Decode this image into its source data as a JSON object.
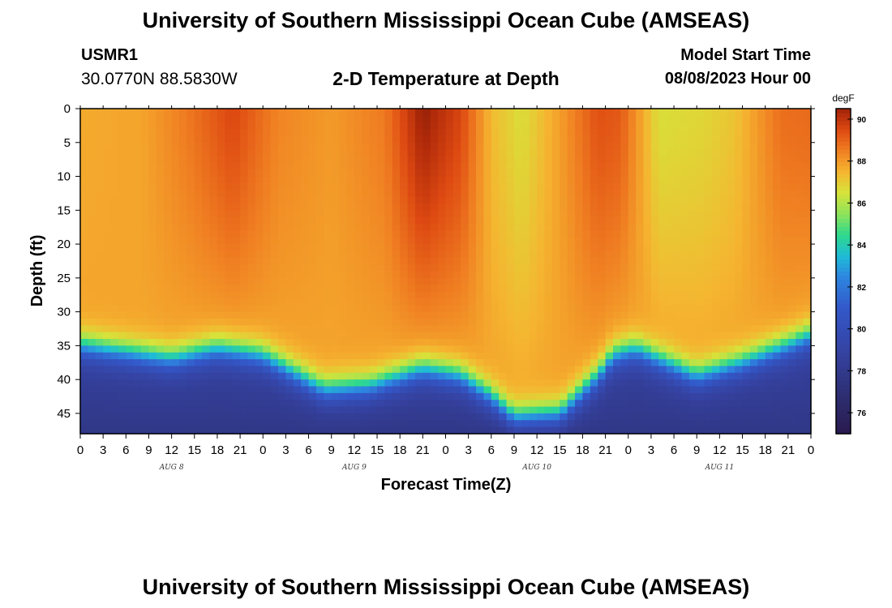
{
  "header": {
    "title": "University of Southern Mississippi Ocean Cube (AMSEAS)",
    "station_id": "USMR1",
    "coordinates": "30.0770N  88.5830W",
    "plot_title": "2-D Temperature at Depth",
    "model_start_label": "Model Start Time",
    "model_start_value": "08/08/2023 Hour 00"
  },
  "footer": {
    "title": "University of Southern Mississippi Ocean Cube (AMSEAS)"
  },
  "chart_data": {
    "type": "heatmap",
    "title": "2-D Temperature at Depth",
    "xlabel": "Forecast Time(Z)",
    "ylabel": "Depth (ft)",
    "x_unit": "hours from model start",
    "xlim": [
      0,
      96
    ],
    "ylim": [
      0,
      48
    ],
    "y_inverted": true,
    "x_ticks": [
      0,
      3,
      6,
      9,
      12,
      15,
      18,
      21,
      24,
      27,
      30,
      33,
      36,
      39,
      42,
      45,
      48,
      51,
      54,
      57,
      60,
      63,
      66,
      69,
      72,
      75,
      78,
      81,
      84,
      87,
      90,
      93,
      96
    ],
    "x_tick_labels": [
      "0",
      "3",
      "6",
      "9",
      "12",
      "15",
      "18",
      "21",
      "0",
      "3",
      "6",
      "9",
      "12",
      "15",
      "18",
      "21",
      "0",
      "3",
      "6",
      "9",
      "12",
      "15",
      "18",
      "21",
      "0",
      "3",
      "6",
      "9",
      "12",
      "15",
      "18",
      "21",
      "0"
    ],
    "y_ticks": [
      0,
      5,
      10,
      15,
      20,
      25,
      30,
      35,
      40,
      45
    ],
    "y_tick_labels": [
      "0",
      "5",
      "10",
      "15",
      "20",
      "25",
      "30",
      "35",
      "40",
      "45"
    ],
    "day_labels": [
      {
        "text": "AUG 8",
        "hour": 12
      },
      {
        "text": "AUG 9",
        "hour": 36
      },
      {
        "text": "AUG 10",
        "hour": 60
      },
      {
        "text": "AUG 11",
        "hour": 84
      }
    ],
    "colorbar": {
      "unit": "degF",
      "min": 75,
      "max": 90.5,
      "ticks": [
        76,
        78,
        80,
        82,
        84,
        86,
        88,
        90
      ],
      "tick_labels": [
        "76",
        "78",
        "80",
        "82",
        "84",
        "86",
        "88",
        "90"
      ],
      "colors": [
        {
          "t": 75.0,
          "c": "#2a1a4e"
        },
        {
          "t": 77.0,
          "c": "#2e3075"
        },
        {
          "t": 79.0,
          "c": "#3543a3"
        },
        {
          "t": 81.0,
          "c": "#3358c9"
        },
        {
          "t": 82.5,
          "c": "#2d86e0"
        },
        {
          "t": 83.5,
          "c": "#1fbcd6"
        },
        {
          "t": 84.5,
          "c": "#2fd98c"
        },
        {
          "t": 85.5,
          "c": "#8fe35a"
        },
        {
          "t": 86.5,
          "c": "#d6e33a"
        },
        {
          "t": 87.5,
          "c": "#f5b530"
        },
        {
          "t": 88.5,
          "c": "#f07f22"
        },
        {
          "t": 89.5,
          "c": "#de4a12"
        },
        {
          "t": 90.3,
          "c": "#b02a0a"
        },
        {
          "t": 91.0,
          "c": "#6a1406"
        }
      ]
    },
    "thermocline_depth_ft": [
      {
        "hour": 0,
        "depth": 33.5
      },
      {
        "hour": 12,
        "depth": 35.5
      },
      {
        "hour": 18,
        "depth": 34
      },
      {
        "hour": 24,
        "depth": 35
      },
      {
        "hour": 28,
        "depth": 37.5
      },
      {
        "hour": 32,
        "depth": 40
      },
      {
        "hour": 38,
        "depth": 39.5
      },
      {
        "hour": 45,
        "depth": 37
      },
      {
        "hour": 50,
        "depth": 38
      },
      {
        "hour": 54,
        "depth": 41
      },
      {
        "hour": 57,
        "depth": 44
      },
      {
        "hour": 63,
        "depth": 43.5
      },
      {
        "hour": 68,
        "depth": 38
      },
      {
        "hour": 70,
        "depth": 35
      },
      {
        "hour": 73,
        "depth": 34
      },
      {
        "hour": 78,
        "depth": 36.5
      },
      {
        "hour": 81,
        "depth": 38
      },
      {
        "hour": 87,
        "depth": 36
      },
      {
        "hour": 93,
        "depth": 33.5
      },
      {
        "hour": 96,
        "depth": 32
      }
    ],
    "surface_temperature_degF": [
      {
        "hour": 0,
        "temp": 87.7
      },
      {
        "hour": 8,
        "temp": 87.8
      },
      {
        "hour": 14,
        "temp": 88.6
      },
      {
        "hour": 20,
        "temp": 89.6
      },
      {
        "hour": 26,
        "temp": 88.4
      },
      {
        "hour": 33,
        "temp": 88.0
      },
      {
        "hour": 40,
        "temp": 88.6
      },
      {
        "hour": 45,
        "temp": 90.6
      },
      {
        "hour": 50,
        "temp": 89.6
      },
      {
        "hour": 54,
        "temp": 87.4
      },
      {
        "hour": 58,
        "temp": 86.6
      },
      {
        "hour": 64,
        "temp": 88.2
      },
      {
        "hour": 68,
        "temp": 89.4
      },
      {
        "hour": 71,
        "temp": 89.2
      },
      {
        "hour": 76,
        "temp": 86.6
      },
      {
        "hour": 82,
        "temp": 86.8
      },
      {
        "hour": 86,
        "temp": 87.2
      },
      {
        "hour": 92,
        "temp": 88.8
      },
      {
        "hour": 96,
        "temp": 88.9
      }
    ],
    "mid_layer_temperature_degF": 87.8,
    "bottom_temperature_degF": 79.0
  }
}
